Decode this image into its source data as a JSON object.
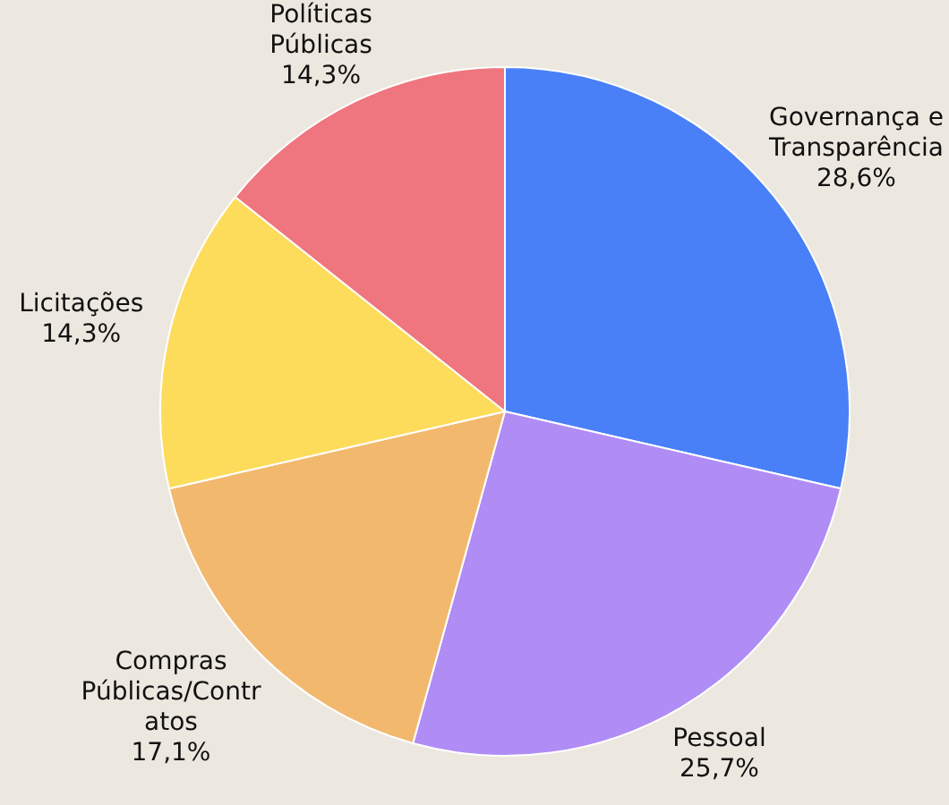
{
  "chart_data": {
    "type": "pie",
    "categories": [
      "Governança e Transparência",
      "Pessoal",
      "Compras Públicas/Contratos",
      "Licitações",
      "Políticas Públicas"
    ],
    "values": [
      28.6,
      25.7,
      17.1,
      14.3,
      14.3
    ],
    "value_labels": [
      "28,6%",
      "25,7%",
      "17,1%",
      "14,3%",
      "14,3%"
    ],
    "colors": [
      "#4a80f7",
      "#b08cf5",
      "#f2b96e",
      "#fddc5c",
      "#ef757e"
    ],
    "legend": false
  }
}
